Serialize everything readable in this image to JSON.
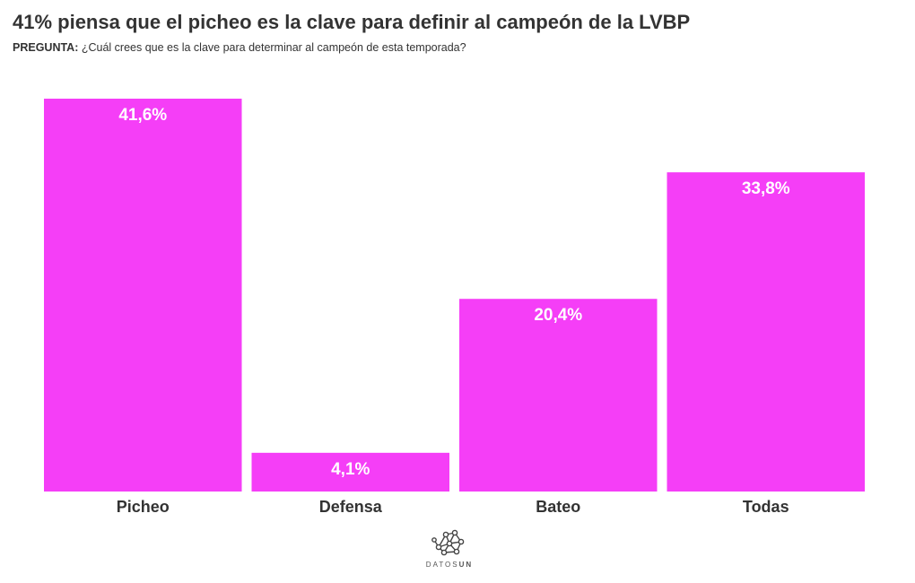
{
  "header": {
    "title": "41% piensa que el picheo es la clave para definir al campeón de la LVBP",
    "question_label": "PREGUNTA:",
    "question_text": " ¿Cuál crees que es la clave para determinar al campeón de esta temporada?"
  },
  "chart_data": {
    "type": "bar",
    "categories": [
      "Picheo",
      "Defensa",
      "Bateo",
      "Todas"
    ],
    "values": [
      41.6,
      4.1,
      20.4,
      33.8
    ],
    "value_labels": [
      "41,6%",
      "4,1%",
      "20,4%",
      "33,8%"
    ],
    "ylim": [
      0,
      41.6
    ],
    "bar_color": "#f53ef7",
    "grid": false,
    "legend": "none"
  },
  "footer": {
    "logo_icon": "network-graph-icon",
    "brand_part1": "DATOS",
    "brand_part2": "UN"
  }
}
